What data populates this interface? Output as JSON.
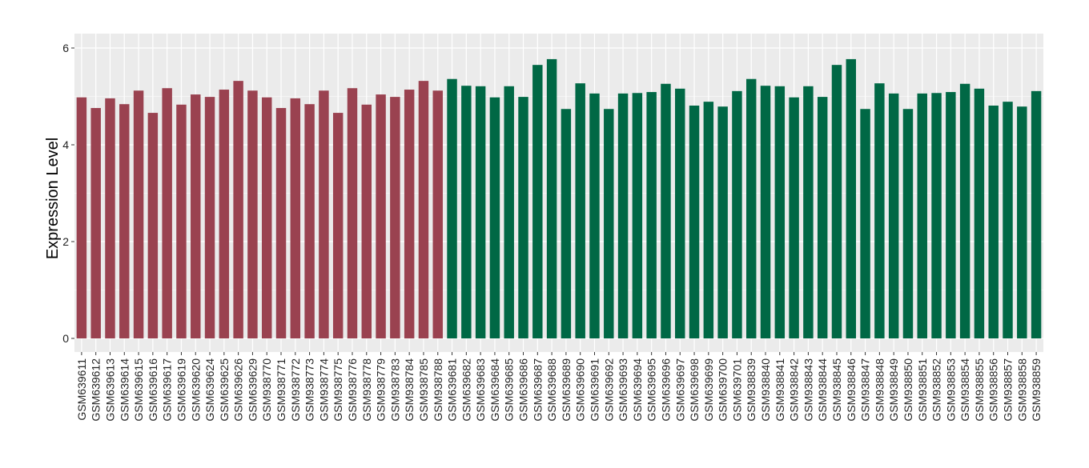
{
  "chart_data": {
    "type": "bar",
    "ylabel": "Expression Level",
    "xlabel": "",
    "ylim": [
      0,
      6
    ],
    "yticks": [
      0,
      2,
      4,
      6
    ],
    "grid": true,
    "colors": {
      "group1": "#9A4250",
      "group2": "#006845",
      "panel": "#EBEBEB"
    },
    "categories": [
      "GSM639611",
      "GSM639612",
      "GSM639613",
      "GSM639614",
      "GSM639615",
      "GSM639616",
      "GSM639617",
      "GSM639619",
      "GSM639620",
      "GSM639624",
      "GSM639625",
      "GSM639626",
      "GSM639629",
      "GSM938770",
      "GSM938771",
      "GSM938772",
      "GSM938773",
      "GSM938774",
      "GSM938775",
      "GSM938776",
      "GSM938778",
      "GSM938779",
      "GSM938783",
      "GSM938784",
      "GSM938785",
      "GSM938788",
      "GSM639681",
      "GSM639682",
      "GSM639683",
      "GSM639684",
      "GSM639685",
      "GSM639686",
      "GSM639687",
      "GSM639688",
      "GSM639689",
      "GSM639690",
      "GSM639691",
      "GSM639692",
      "GSM639693",
      "GSM639694",
      "GSM639695",
      "GSM639696",
      "GSM639697",
      "GSM639698",
      "GSM639699",
      "GSM639700",
      "GSM639701",
      "GSM938839",
      "GSM938840",
      "GSM938841",
      "GSM938842",
      "GSM938843",
      "GSM938844",
      "GSM938845",
      "GSM938846",
      "GSM938847",
      "GSM938848",
      "GSM938849",
      "GSM938850",
      "GSM938851",
      "GSM938852",
      "GSM938853",
      "GSM938854",
      "GSM938855",
      "GSM938856",
      "GSM938857",
      "GSM938858",
      "GSM938859"
    ],
    "values": [
      4.98,
      4.76,
      4.96,
      4.84,
      5.12,
      4.66,
      5.17,
      4.83,
      5.04,
      4.99,
      5.14,
      5.32,
      5.12,
      4.98,
      4.76,
      4.96,
      4.84,
      5.12,
      4.66,
      5.17,
      4.83,
      5.04,
      4.99,
      5.14,
      5.32,
      5.12,
      5.36,
      5.22,
      5.21,
      4.98,
      5.21,
      4.99,
      5.65,
      5.77,
      4.74,
      5.27,
      5.06,
      4.74,
      5.06,
      5.07,
      5.09,
      5.26,
      5.16,
      4.81,
      4.89,
      4.79,
      5.11,
      5.36,
      5.22,
      5.21,
      4.98,
      5.21,
      4.99,
      5.65,
      5.77,
      4.74,
      5.27,
      5.06,
      4.74,
      5.06,
      5.07,
      5.09,
      5.26,
      5.16,
      4.81,
      4.89,
      4.79,
      5.11
    ],
    "groups": [
      1,
      1,
      1,
      1,
      1,
      1,
      1,
      1,
      1,
      1,
      1,
      1,
      1,
      1,
      1,
      1,
      1,
      1,
      1,
      1,
      1,
      1,
      1,
      1,
      1,
      1,
      2,
      2,
      2,
      2,
      2,
      2,
      2,
      2,
      2,
      2,
      2,
      2,
      2,
      2,
      2,
      2,
      2,
      2,
      2,
      2,
      2,
      2,
      2,
      2,
      2,
      2,
      2,
      2,
      2,
      2,
      2,
      2,
      2,
      2,
      2,
      2,
      2,
      2,
      2,
      2,
      2,
      2
    ]
  }
}
